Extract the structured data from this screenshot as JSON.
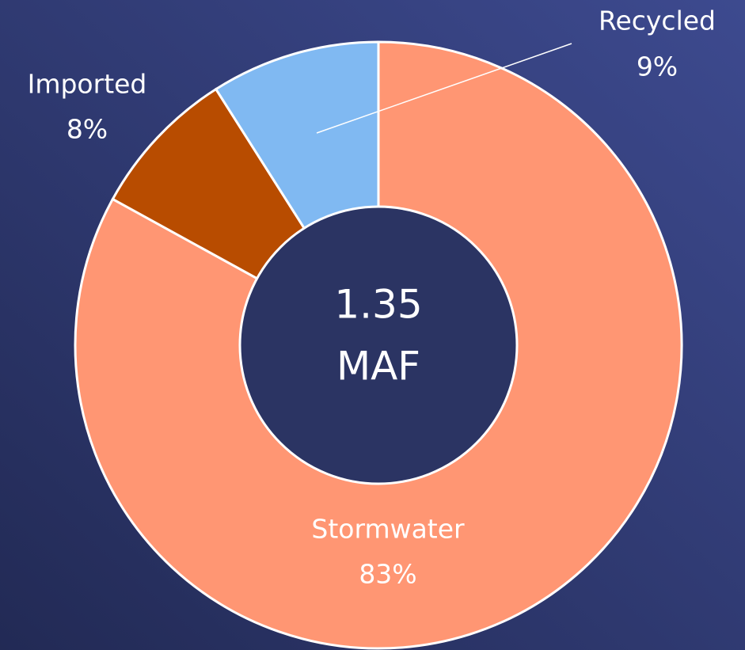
{
  "chart_data": {
    "type": "donut",
    "categories": [
      "Stormwater",
      "Imported",
      "Recycled"
    ],
    "values": [
      83,
      8,
      9
    ],
    "value_labels": [
      "83%",
      "8%",
      "9%"
    ],
    "colors": [
      "#ff9673",
      "#b84c00",
      "#80b9f2"
    ],
    "center_text": [
      "1.35",
      "MAF"
    ]
  }
}
